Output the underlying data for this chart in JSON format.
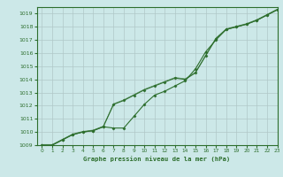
{
  "title": "Graphe pression niveau de la mer (hPa)",
  "bg_color": "#cce8e8",
  "grid_color": "#b0c8c8",
  "line_color": "#2d6e2d",
  "marker_color": "#2d6e2d",
  "xlim": [
    -0.5,
    23
  ],
  "ylim": [
    1009,
    1019.5
  ],
  "xticks": [
    0,
    1,
    2,
    3,
    4,
    5,
    6,
    7,
    8,
    9,
    10,
    11,
    12,
    13,
    14,
    15,
    16,
    17,
    18,
    19,
    20,
    21,
    22,
    23
  ],
  "yticks": [
    1009,
    1010,
    1011,
    1012,
    1013,
    1014,
    1015,
    1016,
    1017,
    1018,
    1019
  ],
  "series_main": {
    "x": [
      0,
      1,
      2,
      3,
      4,
      5,
      6,
      7,
      8,
      9,
      10,
      11,
      12,
      13,
      14,
      15,
      16,
      17,
      18,
      19,
      20,
      21,
      22,
      23
    ],
    "y": [
      1009.0,
      1009.0,
      1009.4,
      1009.8,
      1010.0,
      1010.1,
      1010.4,
      1012.1,
      1012.4,
      1012.8,
      1013.2,
      1013.5,
      1013.8,
      1014.1,
      1014.0,
      1014.5,
      1015.8,
      1017.1,
      1017.8,
      1018.0,
      1018.2,
      1018.5,
      1018.9,
      1019.3
    ]
  },
  "series_dip": {
    "x": [
      0,
      1,
      2,
      3,
      4,
      5,
      6,
      7,
      8,
      9,
      10,
      11,
      12,
      13,
      14,
      15,
      16,
      17,
      18,
      19,
      20,
      21,
      22,
      23
    ],
    "y": [
      1009.0,
      1009.0,
      1009.4,
      1009.8,
      1010.0,
      1010.1,
      1010.4,
      1010.3,
      1010.3,
      1011.2,
      1012.1,
      1012.8,
      1013.1,
      1013.5,
      1013.9,
      1014.8,
      1016.1,
      1017.0,
      1017.8,
      1018.0,
      1018.2,
      1018.5,
      1018.9,
      1019.3
    ]
  }
}
